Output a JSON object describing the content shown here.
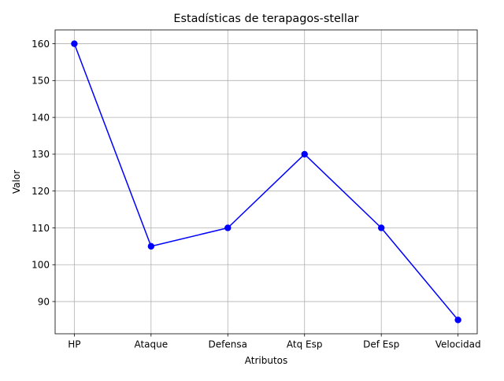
{
  "chart_data": {
    "type": "line",
    "title": "Estadísticas de terapagos-stellar",
    "xlabel": "Atributos",
    "ylabel": "Valor",
    "categories": [
      "HP",
      "Ataque",
      "Defensa",
      "Atq Esp",
      "Def Esp",
      "Velocidad"
    ],
    "series": [
      {
        "values": [
          160,
          105,
          110,
          130,
          110,
          85
        ],
        "color": "#0000ff",
        "marker": "circle"
      }
    ],
    "ylim": [
      81.25,
      163.75
    ],
    "yticks": [
      90,
      100,
      110,
      120,
      130,
      140,
      150,
      160
    ],
    "grid": true,
    "legend": "none"
  }
}
